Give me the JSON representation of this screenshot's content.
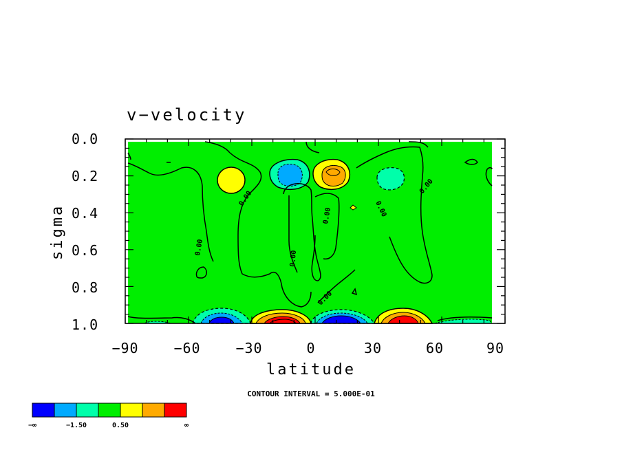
{
  "chart_data": {
    "type": "contour",
    "title": "v−velocity",
    "xlabel": "latitude",
    "ylabel": "sigma",
    "xlim": [
      -90,
      90
    ],
    "ylim": [
      0.0,
      1.0
    ],
    "y_reversed": true,
    "x_ticks": [
      "−90",
      "−60",
      "−30",
      "0",
      "30",
      "60",
      "90"
    ],
    "y_ticks": [
      "0.0",
      "0.2",
      "0.4",
      "0.6",
      "0.8",
      "1.0"
    ],
    "contour_interval_text": "CONTOUR INTERVAL = 5.000E-01",
    "zero_contour_label": "0.00",
    "colorbar": {
      "colors": [
        "#0000ff",
        "#00aaff",
        "#00ffaa",
        "#00ee00",
        "#ffff00",
        "#ffaa00",
        "#ff0000"
      ],
      "labels": [
        "−∞",
        "−1.50",
        "0.50",
        "∞"
      ]
    },
    "features": [
      {
        "kind": "negative",
        "lat": -12,
        "sigma": 0.2,
        "level": -1.5
      },
      {
        "kind": "positive",
        "lat": 10,
        "sigma": 0.2,
        "level": 1.5
      },
      {
        "kind": "positive",
        "lat": -35,
        "sigma": 0.22,
        "level": 0.5
      },
      {
        "kind": "negative",
        "lat": 38,
        "sigma": 0.22,
        "level": -1.0
      },
      {
        "kind": "negative",
        "lat": -43,
        "sigma": 0.98,
        "level": -2.5
      },
      {
        "kind": "positive",
        "lat": -12,
        "sigma": 0.98,
        "level": 3.0
      },
      {
        "kind": "negative",
        "lat": 13,
        "sigma": 0.98,
        "level": -3.0
      },
      {
        "kind": "positive",
        "lat": 43,
        "sigma": 0.98,
        "level": 2.5
      }
    ]
  }
}
